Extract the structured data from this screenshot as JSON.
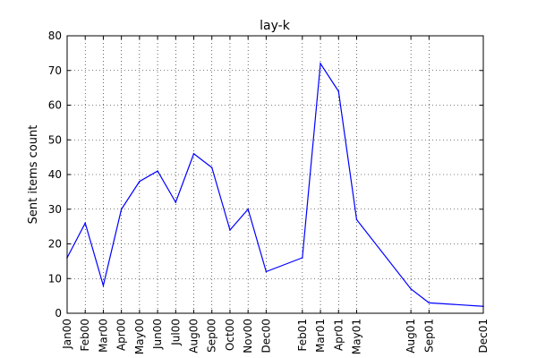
{
  "chart_data": {
    "type": "line",
    "title": "lay-k",
    "xlabel": "",
    "ylabel": "Sent items count",
    "ylim": [
      0,
      80
    ],
    "yticks": [
      0,
      10,
      20,
      30,
      40,
      50,
      60,
      70,
      80
    ],
    "grid": true,
    "line_color": "#0000ff",
    "x_range": [
      "2000-01",
      "2001-12"
    ],
    "series": [
      {
        "x": [
          "2000-01",
          "2000-02",
          "2000-03",
          "2000-04",
          "2000-05",
          "2000-06",
          "2000-07",
          "2000-08",
          "2000-09",
          "2000-10",
          "2000-11",
          "2000-12",
          "2001-02",
          "2001-03",
          "2001-04",
          "2001-05",
          "2001-08",
          "2001-09",
          "2001-12"
        ],
        "values": [
          16,
          26,
          8,
          30,
          38,
          41,
          32,
          46,
          42,
          24,
          30,
          12,
          16,
          72,
          64,
          27,
          7,
          3,
          2
        ]
      }
    ],
    "xtick_labels": [
      "Jan00",
      "Feb00",
      "Mar00",
      "Apr00",
      "May00",
      "Jun00",
      "Jul00",
      "Aug00",
      "Sep00",
      "Oct00",
      "Nov00",
      "Dec00",
      "Feb01",
      "Mar01",
      "Apr01",
      "May01",
      "Aug01",
      "Sep01",
      "Dec01"
    ]
  }
}
